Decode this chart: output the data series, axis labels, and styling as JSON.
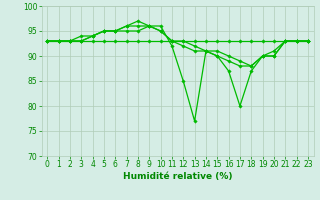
{
  "xlabel": "Humidité relative (%)",
  "x": [
    0,
    1,
    2,
    3,
    4,
    5,
    6,
    7,
    8,
    9,
    10,
    11,
    12,
    13,
    14,
    15,
    16,
    17,
    18,
    19,
    20,
    21,
    22,
    23
  ],
  "lines": [
    [
      93,
      93,
      93,
      93,
      93,
      93,
      93,
      93,
      93,
      93,
      93,
      93,
      93,
      93,
      93,
      93,
      93,
      93,
      93,
      93,
      93,
      93,
      93,
      93
    ],
    [
      93,
      93,
      93,
      94,
      94,
      95,
      95,
      95,
      95,
      96,
      95,
      93,
      93,
      92,
      91,
      91,
      90,
      89,
      88,
      90,
      90,
      93,
      93,
      93
    ],
    [
      93,
      93,
      93,
      93,
      94,
      95,
      95,
      96,
      97,
      96,
      95,
      93,
      92,
      91,
      91,
      90,
      89,
      88,
      88,
      90,
      91,
      93,
      93,
      93
    ],
    [
      93,
      93,
      93,
      93,
      94,
      95,
      95,
      96,
      96,
      96,
      96,
      92,
      85,
      77,
      91,
      90,
      87,
      80,
      87,
      90,
      90,
      93,
      93,
      93
    ]
  ],
  "line_color": "#00bb00",
  "marker": "D",
  "markersize": 1.8,
  "linewidth": 0.9,
  "ylim": [
    70,
    100
  ],
  "xlim_min": -0.5,
  "xlim_max": 23.5,
  "yticks": [
    70,
    75,
    80,
    85,
    90,
    95,
    100
  ],
  "xticks": [
    0,
    1,
    2,
    3,
    4,
    5,
    6,
    7,
    8,
    9,
    10,
    11,
    12,
    13,
    14,
    15,
    16,
    17,
    18,
    19,
    20,
    21,
    22,
    23
  ],
  "bg_color": "#d5ede5",
  "grid_color": "#b0ccb8",
  "tick_color": "#008800",
  "label_color": "#008800",
  "tick_fontsize": 5.5,
  "xlabel_fontsize": 6.5
}
